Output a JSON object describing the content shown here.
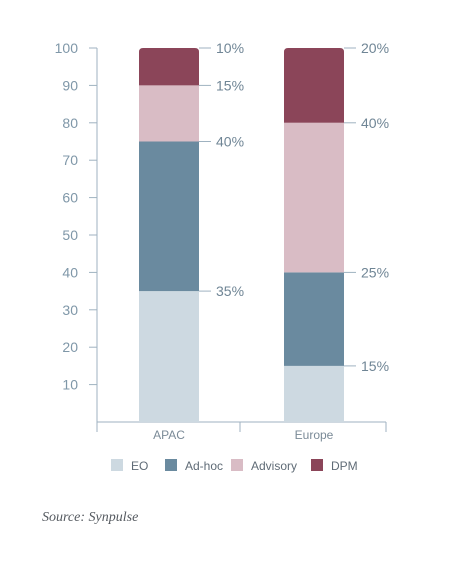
{
  "chart_data": {
    "type": "bar",
    "stacked": true,
    "categories": [
      "APAC",
      "Europe"
    ],
    "series": [
      {
        "name": "EO",
        "values": [
          35,
          15
        ],
        "color": "#cdd9e1"
      },
      {
        "name": "Ad-hoc",
        "values": [
          40,
          25
        ],
        "color": "#6a8a9f"
      },
      {
        "name": "Advisory",
        "values": [
          15,
          40
        ],
        "color": "#d9bcc5"
      },
      {
        "name": "DPM",
        "values": [
          10,
          20
        ],
        "color": "#8b4559"
      }
    ],
    "segment_labels": [
      [
        "35%",
        "40%",
        "15%",
        "10%"
      ],
      [
        "15%",
        "25%",
        "40%",
        "20%"
      ]
    ],
    "yticks": [
      10,
      20,
      30,
      40,
      50,
      60,
      70,
      80,
      90,
      100
    ],
    "ylim": [
      0,
      100
    ],
    "legend_position": "bottom",
    "grid": false,
    "axis_color": "#9fb2c0"
  },
  "source": "Source: Synpulse"
}
